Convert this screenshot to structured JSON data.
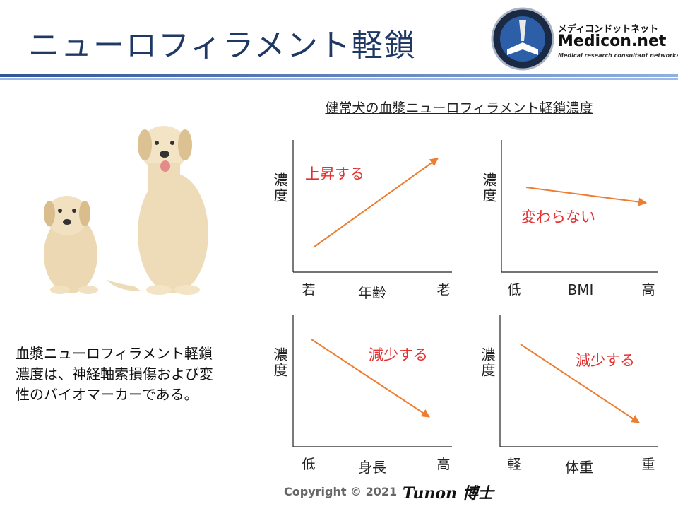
{
  "header": {
    "title": "ニューロフィラメント軽鎖",
    "logo": {
      "kana": "メディコンドットネット",
      "name": "Medicon.net",
      "tagline": "Medical research consultant networks"
    }
  },
  "subtitle": "健常犬の血漿ニューロフィラメント軽鎖濃度",
  "panels": [
    {
      "y_label": "濃度",
      "x_label": "年齢",
      "x_low": "若",
      "x_high": "老",
      "annotation": "上昇する"
    },
    {
      "y_label": "濃度",
      "x_label": "BMI",
      "x_low": "低",
      "x_high": "高",
      "annotation": "変わらない"
    },
    {
      "y_label": "濃度",
      "x_label": "身長",
      "x_low": "低",
      "x_high": "高",
      "annotation": "減少する"
    },
    {
      "y_label": "濃度",
      "x_label": "体重",
      "x_low": "軽",
      "x_high": "重",
      "annotation": "減少する"
    }
  ],
  "body": {
    "lines": [
      "血漿ニューロフィラメント軽鎖",
      "濃度は、神経軸索損傷および変",
      "性のバイオマーカーである。"
    ]
  },
  "footer": {
    "copyright": "Copyright © 2021",
    "signature": "Tunon 博士"
  }
}
